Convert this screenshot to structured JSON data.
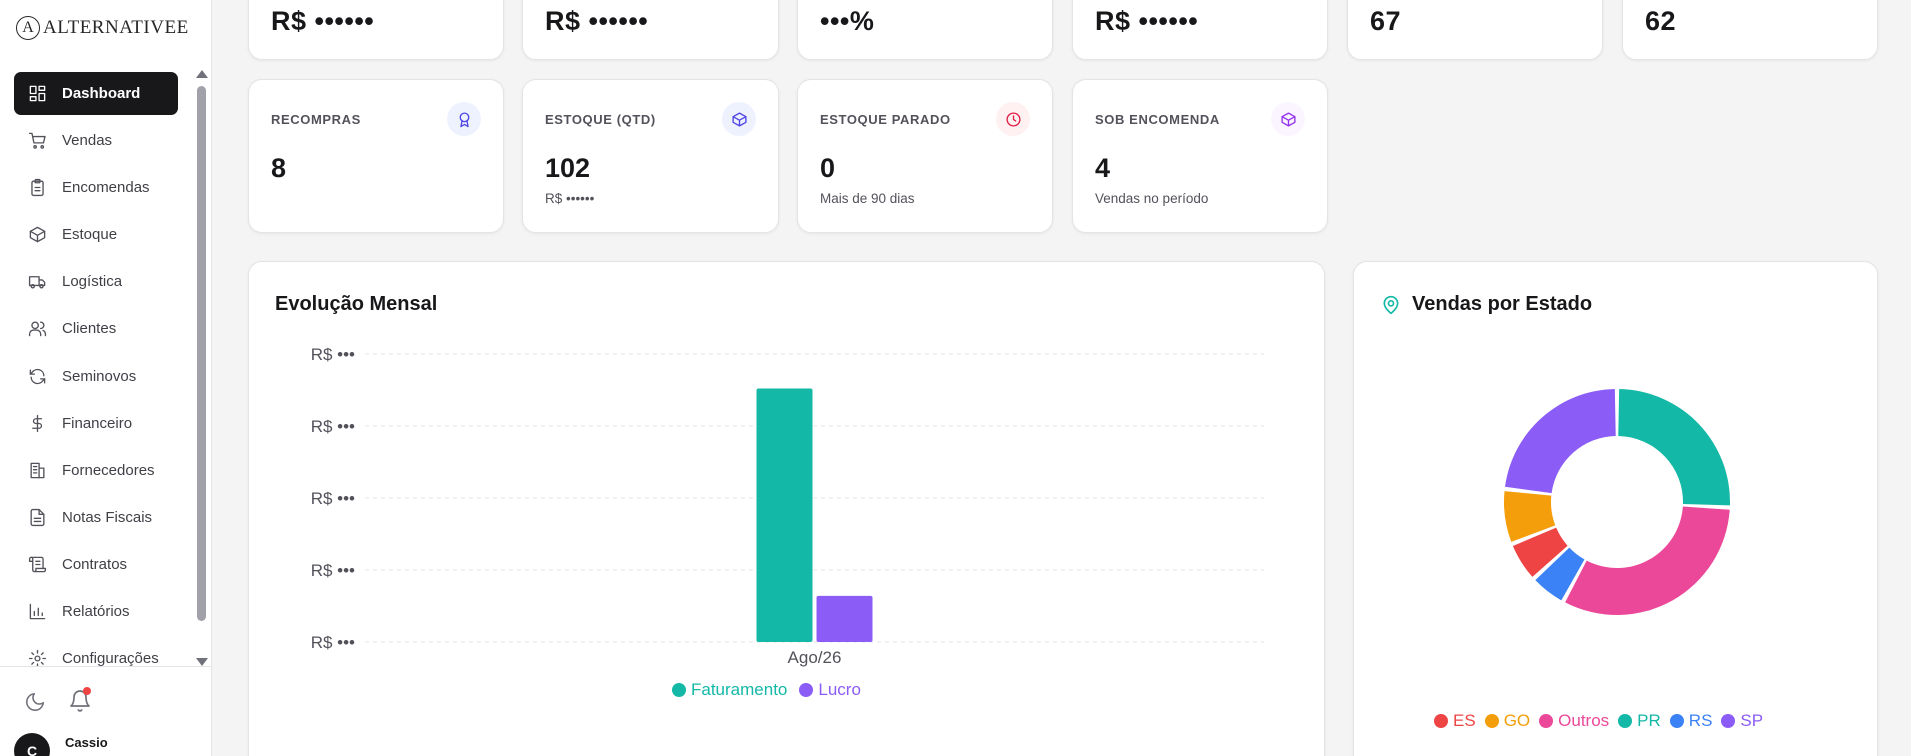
{
  "brand": {
    "logo_letter": "A",
    "name": "ALTERNATIVEE"
  },
  "sidebar": {
    "items": [
      {
        "label": "Dashboard",
        "icon": "dashboard-icon",
        "active": true
      },
      {
        "label": "Vendas",
        "icon": "cart-icon"
      },
      {
        "label": "Encomendas",
        "icon": "clipboard-icon"
      },
      {
        "label": "Estoque",
        "icon": "box-icon"
      },
      {
        "label": "Logística",
        "icon": "truck-icon"
      },
      {
        "label": "Clientes",
        "icon": "users-icon"
      },
      {
        "label": "Seminovos",
        "icon": "refresh-icon"
      },
      {
        "label": "Financeiro",
        "icon": "dollar-icon"
      },
      {
        "label": "Fornecedores",
        "icon": "building-icon"
      },
      {
        "label": "Notas Fiscais",
        "icon": "file-text-icon"
      },
      {
        "label": "Contratos",
        "icon": "scroll-icon"
      },
      {
        "label": "Relatórios",
        "icon": "bar-chart-icon"
      },
      {
        "label": "Configurações",
        "icon": "gear-icon"
      }
    ],
    "footer": {
      "avatar_initial": "C",
      "user_name": "Cassio"
    }
  },
  "top_cards": [
    {
      "value": "R$ ••••••"
    },
    {
      "value": "R$ ••••••"
    },
    {
      "value": "•••%"
    },
    {
      "value": "R$ ••••••"
    },
    {
      "value": "67"
    },
    {
      "value": "62"
    }
  ],
  "kpis": [
    {
      "label": "RECOMPRAS",
      "value": "8",
      "sub": "",
      "icon": "award-icon",
      "icon_color": "#4f46e5",
      "icon_bg": "#eef2ff"
    },
    {
      "label": "ESTOQUE (QTD)",
      "value": "102",
      "sub": "R$ ••••••",
      "icon": "box-icon",
      "icon_color": "#4f46e5",
      "icon_bg": "#eef2ff"
    },
    {
      "label": "ESTOQUE PARADO",
      "value": "0",
      "sub": "Mais de 90 dias",
      "icon": "clock-icon",
      "icon_color": "#e11d48",
      "icon_bg": "#fff1f2"
    },
    {
      "label": "SOB ENCOMENDA",
      "value": "4",
      "sub": "Vendas no período",
      "icon": "box-icon",
      "icon_color": "#9333ea",
      "icon_bg": "#faf5ff"
    }
  ],
  "monthly": {
    "title": "Evolução Mensal",
    "chart_data": {
      "type": "bar",
      "categories": [
        "Ago/26"
      ],
      "series": [
        {
          "name": "Faturamento",
          "values": [
            0.88
          ],
          "color": "#14b8a6"
        },
        {
          "name": "Lucro",
          "values": [
            0.16
          ],
          "color": "#8b5cf6"
        }
      ],
      "y_tick_labels": [
        "R$ •••",
        "R$ •••",
        "R$ •••",
        "R$ •••",
        "R$ •••"
      ],
      "ylim": [
        0,
        1
      ],
      "grid": true,
      "legend": "bottom"
    }
  },
  "states": {
    "title": "Vendas por Estado",
    "chart_data": {
      "type": "pie",
      "labels": [
        "ES",
        "GO",
        "Outros",
        "PR",
        "RS",
        "SP"
      ],
      "values": [
        5.5,
        7.5,
        30.5,
        24.5,
        5,
        22
      ],
      "colors": [
        "#ef4444",
        "#f59e0b",
        "#ec4899",
        "#14b8a6",
        "#3b82f6",
        "#8b5cf6"
      ],
      "order": [
        3,
        2,
        4,
        0,
        1,
        5
      ],
      "legend": "bottom"
    }
  }
}
